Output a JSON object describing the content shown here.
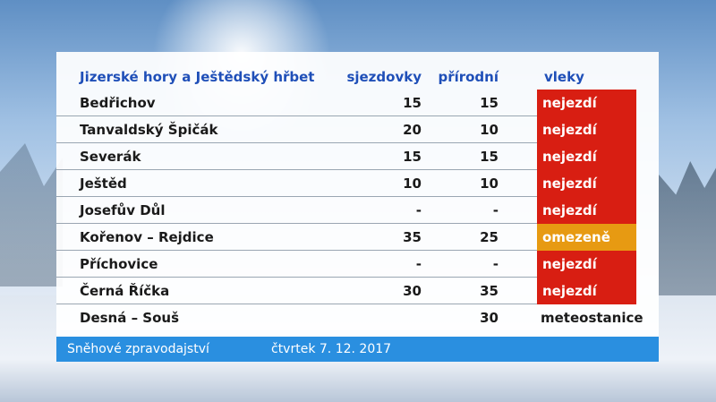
{
  "header": {
    "region": "Jizerské hory a Ještědský hřbet",
    "col_sjezdovky": "sjezdovky",
    "col_prirodni": "přírodní",
    "col_vleky": "vleky"
  },
  "rows": [
    {
      "name": "Bedřichov",
      "sjezdovky": "15",
      "prirodni": "15",
      "vleky": "nejezdí",
      "status": "closed"
    },
    {
      "name": "Tanvaldský Špičák",
      "sjezdovky": "20",
      "prirodni": "10",
      "vleky": "nejezdí",
      "status": "closed"
    },
    {
      "name": "Severák",
      "sjezdovky": "15",
      "prirodni": "15",
      "vleky": "nejezdí",
      "status": "closed"
    },
    {
      "name": "Ještěd",
      "sjezdovky": "10",
      "prirodni": "10",
      "vleky": "nejezdí",
      "status": "closed"
    },
    {
      "name": "Josefův Důl",
      "sjezdovky": "-",
      "prirodni": "-",
      "vleky": "nejezdí",
      "status": "closed"
    },
    {
      "name": "Kořenov – Rejdice",
      "sjezdovky": "35",
      "prirodni": "25",
      "vleky": "omezeně",
      "status": "limited"
    },
    {
      "name": "Příchovice",
      "sjezdovky": "-",
      "prirodni": "-",
      "vleky": "nejezdí",
      "status": "closed"
    },
    {
      "name": "Černá Říčka",
      "sjezdovky": "30",
      "prirodni": "35",
      "vleky": "nejezdí",
      "status": "closed"
    },
    {
      "name": "Desná – Souš",
      "sjezdovky": "",
      "prirodni": "30",
      "vleky": "meteostanice",
      "status": "station"
    }
  ],
  "footer": {
    "program": "Sněhové zpravodajství",
    "date": "čtvrtek 7. 12. 2017"
  },
  "colors": {
    "closed": "#d81e12",
    "limited": "#e79a12",
    "header_text": "#1f4fb8",
    "footer_bg": "#2a8fe0"
  }
}
